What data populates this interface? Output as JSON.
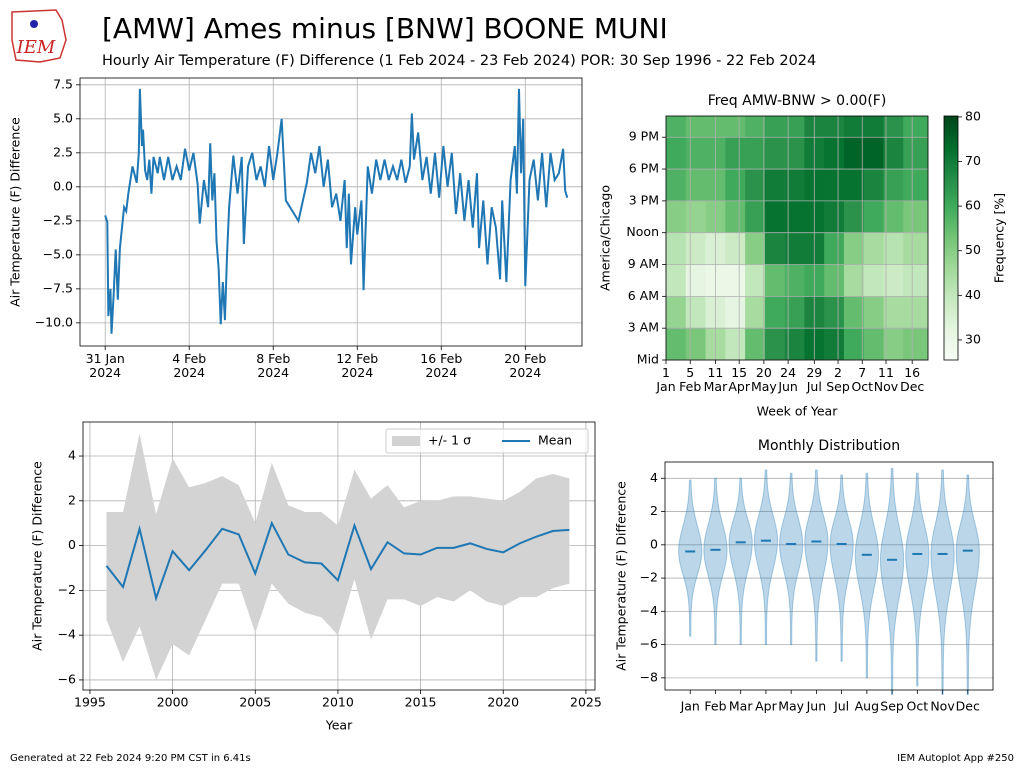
{
  "header": {
    "title": "[AMW] Ames minus [BNW] BOONE MUNI",
    "subtitle": "Hourly Air Temperature (F) Difference (1 Feb 2024 - 23 Feb 2024) POR: 30 Sep 1996 - 22 Feb 2024",
    "logo": "IEM"
  },
  "footer": {
    "left": "Generated at 22 Feb 2024 9:20 PM CST in 6.41s",
    "right": "IEM Autoplot App #250"
  },
  "chart_data": [
    {
      "type": "line",
      "ylabel": "Air Temperature (F) Difference",
      "color": "#1f77b4",
      "grid": true,
      "xlim": [
        -1.2,
        22.7
      ],
      "ylim": [
        -11.7,
        8.0
      ],
      "xticks": [
        {
          "value": 0,
          "label": [
            "31 Jan",
            "2024"
          ]
        },
        {
          "value": 4,
          "label": [
            "4 Feb",
            "2024"
          ]
        },
        {
          "value": 8,
          "label": [
            "8 Feb",
            "2024"
          ]
        },
        {
          "value": 12,
          "label": [
            "12 Feb",
            "2024"
          ]
        },
        {
          "value": 16,
          "label": [
            "16 Feb",
            "2024"
          ]
        },
        {
          "value": 20,
          "label": [
            "20 Feb",
            "2024"
          ]
        }
      ],
      "yticks": [
        {
          "value": 7.5,
          "label": "7.5"
        },
        {
          "value": 5,
          "label": "5.0"
        },
        {
          "value": 2.5,
          "label": "2.5"
        },
        {
          "value": 0,
          "label": "0.0"
        },
        {
          "value": -2.5,
          "label": "−2.5"
        },
        {
          "value": -5,
          "label": "−5.0"
        },
        {
          "value": -7.5,
          "label": "−7.5"
        },
        {
          "value": -10,
          "label": "−10.0"
        }
      ],
      "x": [
        0.0,
        0.1,
        0.15,
        0.25,
        0.3,
        0.4,
        0.5,
        0.6,
        0.7,
        0.8,
        0.9,
        1.0,
        1.1,
        1.3,
        1.5,
        1.6,
        1.65,
        1.75,
        1.8,
        1.9,
        2.0,
        2.1,
        2.2,
        2.3,
        2.5,
        2.6,
        2.8,
        3.0,
        3.2,
        3.4,
        3.6,
        3.8,
        4.0,
        4.2,
        4.4,
        4.5,
        4.7,
        4.9,
        5.0,
        5.1,
        5.2,
        5.3,
        5.4,
        5.5,
        5.6,
        5.7,
        5.8,
        5.9,
        6.1,
        6.3,
        6.5,
        6.6,
        6.8,
        7.0,
        7.2,
        7.4,
        7.6,
        7.8,
        8.0,
        8.2,
        8.4,
        8.6,
        9.2,
        9.6,
        9.8,
        10.0,
        10.2,
        10.4,
        10.6,
        10.8,
        11.0,
        11.2,
        11.4,
        11.5,
        11.6,
        11.7,
        11.9,
        12.0,
        12.2,
        12.3,
        12.5,
        12.7,
        12.9,
        13.1,
        13.3,
        13.5,
        13.7,
        13.9,
        14.1,
        14.3,
        14.5,
        14.6,
        14.7,
        14.9,
        15.1,
        15.3,
        15.5,
        15.7,
        15.9,
        16.1,
        16.3,
        16.5,
        16.7,
        16.9,
        17.1,
        17.3,
        17.5,
        17.7,
        17.8,
        18.0,
        18.2,
        18.4,
        18.6,
        18.8,
        18.9,
        19.1,
        19.3,
        19.5,
        19.6,
        19.7,
        19.8,
        19.9,
        20.0,
        20.2,
        20.4,
        20.6,
        20.8,
        21.0,
        21.2,
        21.4,
        21.6,
        21.8,
        21.9,
        22.0
      ],
      "values": [
        -2.1,
        -2.6,
        -9.5,
        -7.5,
        -10.8,
        -8,
        -4.6,
        -8.3,
        -4.5,
        -3,
        -1.5,
        -1.8,
        -0.5,
        1.5,
        0.3,
        2.5,
        7.2,
        3.0,
        4.2,
        1.2,
        0.5,
        2.0,
        -0.5,
        2.2,
        1.0,
        2.2,
        0.5,
        2.2,
        0.5,
        1.5,
        0.5,
        2.8,
        1.2,
        2.5,
        0.2,
        -2.7,
        0.5,
        -1.5,
        3.2,
        -1.0,
        1.0,
        -4,
        -6,
        -10.1,
        -7,
        -9.8,
        -5,
        -1.5,
        2.3,
        -0.5,
        2.2,
        -4.2,
        1.5,
        2.5,
        0.5,
        1.5,
        0.0,
        3.0,
        0.5,
        2.5,
        5.0,
        -1.0,
        -2.5,
        0.3,
        2.5,
        1.0,
        3.0,
        0.0,
        2.0,
        -1.5,
        -0.5,
        -2.5,
        0.5,
        -4.5,
        -0.5,
        -5.7,
        -1.5,
        -3.5,
        -1.0,
        -7.6,
        1.5,
        -0.5,
        2.0,
        0.5,
        2.0,
        0.5,
        1.5,
        0.5,
        2.0,
        0.3,
        1.5,
        5.4,
        2.0,
        4.0,
        0.5,
        2.2,
        -0.5,
        2.5,
        -0.8,
        3.0,
        0.0,
        2.5,
        -2.0,
        1.0,
        -2.5,
        0.5,
        -3.0,
        1.0,
        -4.5,
        -1.0,
        -5.7,
        -1.5,
        -3.0,
        -6.8,
        -1.0,
        -7.0,
        0.5,
        3.0,
        -0.5,
        7.2,
        1.0,
        5.0,
        -7.3,
        0.5,
        2.0,
        -1.0,
        2.5,
        -1.5,
        2.5,
        0.5,
        1.0,
        2.8,
        -0.3,
        -0.8
      ]
    },
    {
      "type": "heatmap",
      "title": "Freq AMW-BNW > 0.00(F)",
      "xlabel": "Week of Year",
      "ylabel": "America/Chicago",
      "clabel": "Frequency [%]",
      "grid": true,
      "xlim": [
        0,
        53
      ],
      "ylim": [
        0,
        23
      ],
      "xticks": [
        {
          "value": 0,
          "label": [
            "1",
            "Jan"
          ]
        },
        {
          "value": 4.9,
          "label": [
            "5",
            "Feb"
          ]
        },
        {
          "value": 10,
          "label": [
            "11",
            "Mar"
          ]
        },
        {
          "value": 14.8,
          "label": [
            "15",
            "Apr"
          ]
        },
        {
          "value": 19.8,
          "label": [
            "20",
            "May"
          ]
        },
        {
          "value": 24.7,
          "label": [
            "24",
            "Jun"
          ]
        },
        {
          "value": 30,
          "label": [
            "29",
            "Jul"
          ]
        },
        {
          "value": 34.8,
          "label": [
            "2",
            "Sep"
          ]
        },
        {
          "value": 39.7,
          "label": [
            "7",
            "Oct"
          ]
        },
        {
          "value": 44.5,
          "label": [
            "11",
            "Nov"
          ]
        },
        {
          "value": 49.8,
          "label": [
            "16",
            "Dec"
          ]
        }
      ],
      "yticks": [
        {
          "value": 0,
          "label": "Mid"
        },
        {
          "value": 3,
          "label": "3 AM"
        },
        {
          "value": 6,
          "label": "6 AM"
        },
        {
          "value": 9,
          "label": "9 AM"
        },
        {
          "value": 12,
          "label": "Noon"
        },
        {
          "value": 15,
          "label": "3 PM"
        },
        {
          "value": 18,
          "label": "6 PM"
        },
        {
          "value": 21,
          "label": "9 PM"
        }
      ],
      "xbins": [
        0,
        4,
        8,
        12,
        16,
        20,
        24,
        28,
        32,
        36,
        40,
        44,
        48,
        53
      ],
      "ybins": [
        0,
        3,
        6,
        9,
        12,
        15,
        18,
        21,
        23
      ],
      "values": [
        [
          55,
          52,
          45,
          40,
          55,
          65,
          68,
          72,
          70,
          60,
          55,
          50,
          52
        ],
        [
          48,
          40,
          35,
          32,
          45,
          60,
          62,
          68,
          65,
          55,
          50,
          45,
          45
        ],
        [
          40,
          32,
          30,
          30,
          40,
          55,
          58,
          60,
          55,
          45,
          40,
          38,
          40
        ],
        [
          42,
          38,
          35,
          38,
          50,
          68,
          70,
          70,
          60,
          50,
          45,
          42,
          45
        ],
        [
          50,
          48,
          50,
          55,
          62,
          72,
          72,
          72,
          70,
          65,
          60,
          55,
          52
        ],
        [
          58,
          55,
          55,
          60,
          65,
          70,
          70,
          72,
          72,
          72,
          68,
          62,
          60
        ],
        [
          60,
          58,
          58,
          62,
          62,
          65,
          65,
          70,
          72,
          75,
          75,
          68,
          62
        ],
        [
          58,
          55,
          55,
          55,
          58,
          62,
          62,
          68,
          68,
          70,
          70,
          65,
          60
        ]
      ],
      "clim": [
        25.5,
        80.2
      ],
      "cticks": [
        30,
        40,
        50,
        60,
        70,
        80
      ],
      "colorscale": [
        "#f7fcf5",
        "#e5f5e0",
        "#c7e9c0",
        "#a1d99b",
        "#74c476",
        "#41ab5d",
        "#238b45",
        "#006d2c",
        "#00441b"
      ]
    },
    {
      "type": "band_line",
      "xlabel": "Year",
      "ylabel": "Air Temperature (F) Difference",
      "grid": true,
      "legend": "upper right",
      "xlim": [
        1994.58,
        2025.55
      ],
      "ylim": [
        -6.45,
        5.52
      ],
      "xticks": [
        1995,
        2000,
        2005,
        2010,
        2015,
        2020,
        2025
      ],
      "yticks": [
        {
          "value": -6,
          "label": "−6"
        },
        {
          "value": -4,
          "label": "−4"
        },
        {
          "value": -2,
          "label": "−2"
        },
        0,
        2,
        4
      ],
      "x": [
        1996,
        1997,
        1998,
        1999,
        2000,
        2001,
        2002,
        2003,
        2004,
        2005,
        2006,
        2007,
        2008,
        2009,
        2010,
        2011,
        2012,
        2013,
        2014,
        2015,
        2016,
        2017,
        2018,
        2019,
        2020,
        2021,
        2022,
        2023,
        2024
      ],
      "series": [
        {
          "name": "+/- 1 σ",
          "color": "#d3d3d3",
          "upper": [
            1.5,
            1.5,
            5.0,
            1.4,
            3.9,
            2.6,
            2.8,
            3.1,
            2.7,
            1.0,
            3.7,
            1.8,
            1.5,
            1.5,
            0.9,
            3.4,
            2.1,
            2.7,
            1.7,
            2.0,
            2.0,
            2.2,
            2.2,
            2.1,
            2.0,
            2.4,
            3.0,
            3.2,
            3.0
          ],
          "lower": [
            -3.3,
            -5.2,
            -3.6,
            -6.0,
            -4.4,
            -4.9,
            -3.3,
            -1.7,
            -1.7,
            -3.9,
            -1.7,
            -2.6,
            -3.0,
            -3.2,
            -4.0,
            -1.5,
            -4.2,
            -2.4,
            -2.4,
            -2.7,
            -2.3,
            -2.5,
            -2.0,
            -2.5,
            -2.7,
            -2.3,
            -2.3,
            -1.9,
            -1.7
          ]
        },
        {
          "name": "Mean",
          "color": "#1f77b4",
          "values": [
            -0.9,
            -1.85,
            0.75,
            -2.35,
            -0.25,
            -1.1,
            -0.2,
            0.75,
            0.5,
            -1.25,
            1.0,
            -0.4,
            -0.75,
            -0.8,
            -1.55,
            0.9,
            -1.05,
            0.15,
            -0.35,
            -0.4,
            -0.1,
            -0.1,
            0.1,
            -0.15,
            -0.3,
            0.1,
            0.4,
            0.65,
            0.7
          ]
        }
      ]
    },
    {
      "type": "violin",
      "title": "Monthly Distribution",
      "ylabel": "Air Temperature (F) Difference",
      "grid": true,
      "color": "#1f77b4",
      "xlim": [
        0,
        13
      ],
      "ylim": [
        -8.73,
        4.98
      ],
      "yticks": [
        {
          "value": -8,
          "label": "−8"
        },
        {
          "value": -6,
          "label": "−6"
        },
        {
          "value": -4,
          "label": "−4"
        },
        {
          "value": -2,
          "label": "−2"
        },
        0,
        2,
        4
      ],
      "categories": [
        "Jan",
        "Feb",
        "Mar",
        "Apr",
        "May",
        "Jun",
        "Jul",
        "Aug",
        "Sep",
        "Oct",
        "Nov",
        "Dec"
      ],
      "medians": [
        -0.4,
        -0.3,
        0.15,
        0.25,
        0.05,
        0.2,
        0.05,
        -0.6,
        -0.9,
        -0.55,
        -0.55,
        -0.35
      ],
      "min": [
        -5.5,
        -6,
        -6,
        -6,
        -6,
        -7,
        -7,
        -8,
        -9,
        -8.5,
        -9,
        -9
      ],
      "max": [
        3.9,
        4,
        4,
        4.5,
        4.3,
        4.5,
        4.2,
        4.3,
        4.6,
        4.3,
        4.5,
        4.2
      ]
    }
  ]
}
